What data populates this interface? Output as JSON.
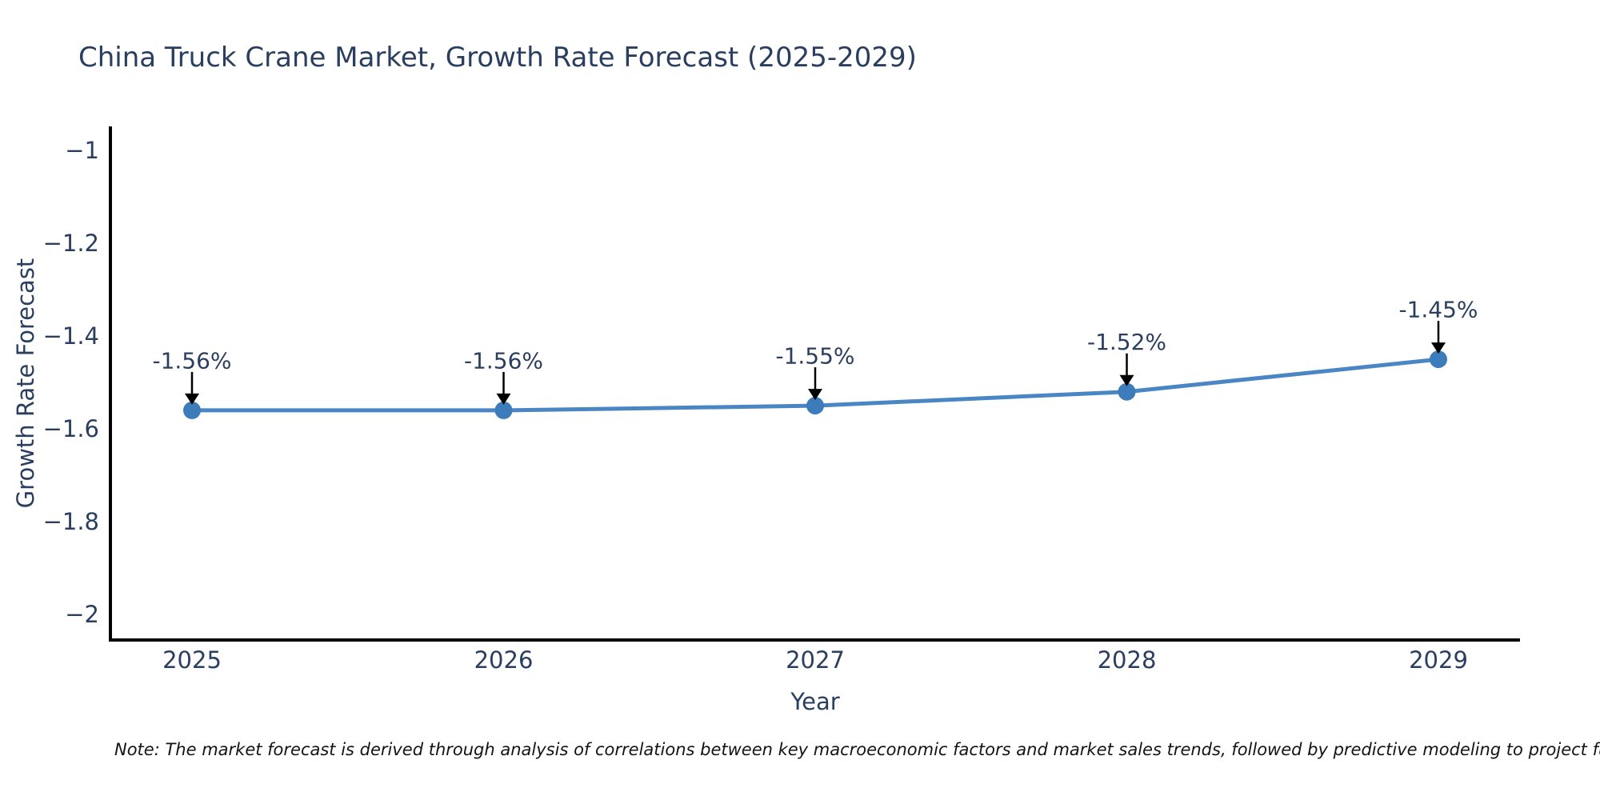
{
  "title": "China Truck Crane Market, Growth Rate Forecast (2025-2029)",
  "note": "Note: The market forecast is derived through analysis of correlations between key macroeconomic factors and market sales trends, followed by predictive modeling to project future sales",
  "chart_data": {
    "type": "line",
    "title": "China Truck Crane Market, Growth Rate Forecast (2025-2029)",
    "xlabel": "Year",
    "ylabel": "Growth Rate Forecast",
    "categories": [
      "2025",
      "2026",
      "2027",
      "2028",
      "2029"
    ],
    "series": [
      {
        "name": "Growth Rate Forecast",
        "values": [
          -1.56,
          -1.56,
          -1.55,
          -1.52,
          -1.45
        ]
      }
    ],
    "point_labels": [
      "-1.56%",
      "-1.56%",
      "-1.55%",
      "-1.52%",
      "-1.45%"
    ],
    "yticks": {
      "values": [
        -1,
        -1.2,
        -1.4,
        -1.6,
        -1.8,
        -2
      ],
      "labels": [
        "−1",
        "−1.2",
        "−1.4",
        "−1.6",
        "−1.8",
        "−2"
      ]
    },
    "ylim": [
      -2.055,
      -0.948
    ],
    "grid": false,
    "legend": false,
    "annotation_style": "black-down-arrows",
    "colors": {
      "line": "#4a86c3",
      "marker": "#3d7cba",
      "axis": "#000000",
      "text": "#2a3f5f",
      "note_text": "#141414",
      "background": "#ffffff"
    }
  }
}
